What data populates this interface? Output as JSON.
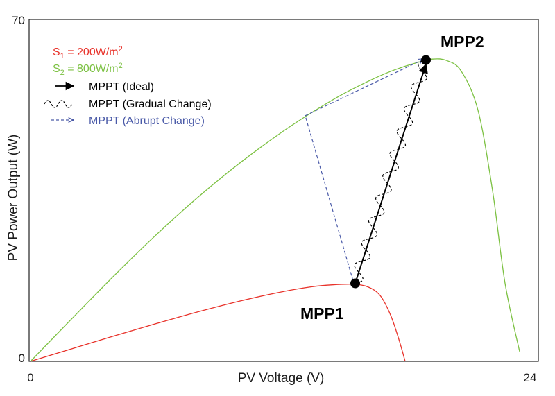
{
  "chart_data": {
    "type": "line",
    "xlabel": "PV Voltage (V)",
    "ylabel": "PV Power Output  (W)",
    "xlim": [
      0,
      24
    ],
    "ylim": [
      0,
      70
    ],
    "x_ticks": [
      "0",
      "24"
    ],
    "y_ticks": [
      "0",
      "70"
    ],
    "grid": false,
    "legend_position": "top-left",
    "series": [
      {
        "name_sym": "S",
        "name_sub": "1",
        "name_rest": " = 200W/m",
        "name_sup": "2",
        "color": "#e8322a",
        "x": [
          0,
          2,
          4,
          6,
          8,
          10,
          12,
          13.5,
          14.5,
          15.5,
          16.2,
          16.8,
          17.3,
          17.7,
          18.0
        ],
        "y": [
          0,
          2.6,
          5.2,
          7.7,
          10.1,
          12.3,
          14.2,
          15.3,
          15.7,
          15.8,
          15.3,
          13.5,
          9.5,
          4.5,
          0
        ]
      },
      {
        "name_sym": "S",
        "name_sub": "2",
        "name_rest": " = 800W/m",
        "name_sup": "2",
        "color": "#7cc142",
        "x": [
          0,
          2,
          4,
          6,
          8,
          10,
          12,
          13.5,
          15,
          16.5,
          17.5,
          18.5,
          19.3,
          20.0,
          20.7,
          21.5,
          22.2,
          22.8,
          23.5
        ],
        "y": [
          0,
          8.8,
          17.5,
          25.8,
          33.5,
          40.5,
          46.8,
          51.0,
          54.8,
          58.0,
          59.8,
          61.2,
          62.0,
          61.7,
          59.5,
          51.5,
          35.0,
          16.0,
          2.0
        ]
      }
    ],
    "arrows": [
      {
        "name": "MPPT (Ideal)",
        "style": "solid",
        "color": "#000000",
        "from": {
          "x": 15.6,
          "y": 16.0
        },
        "to": {
          "x": 19.0,
          "y": 61.8
        }
      },
      {
        "name": "MPPT (Gradual Change)",
        "style": "wavy-dashed",
        "color": "#000000",
        "from": {
          "x": 15.6,
          "y": 16.0
        },
        "to": {
          "x": 19.0,
          "y": 61.8
        }
      },
      {
        "name": "MPPT (Abrupt Change)",
        "style": "dashed",
        "color": "#4a5aa8",
        "path": [
          {
            "x": 15.5,
            "y": 16.5
          },
          {
            "x": 13.2,
            "y": 50.4
          },
          {
            "x": 18.9,
            "y": 62.0
          }
        ]
      }
    ],
    "points": [
      {
        "label": "MPP1",
        "x": 15.6,
        "y": 16.0
      },
      {
        "label": "MPP2",
        "x": 19.0,
        "y": 61.8
      }
    ]
  }
}
